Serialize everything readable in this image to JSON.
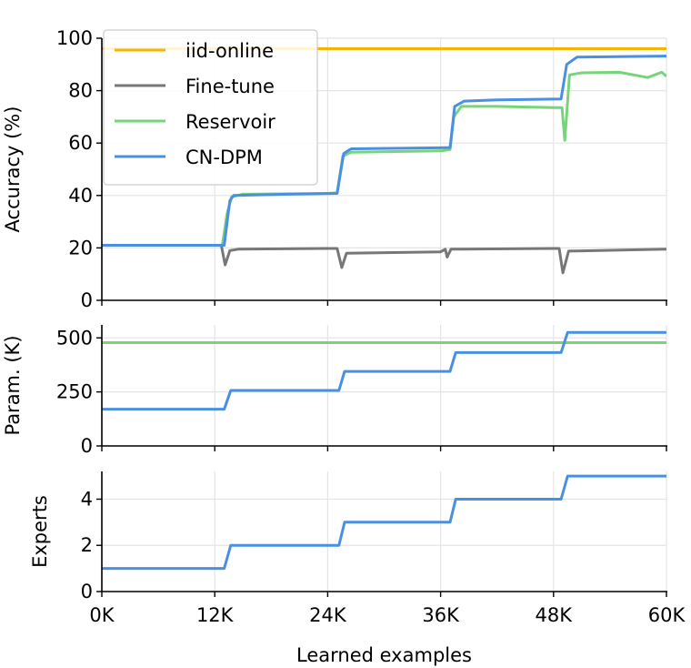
{
  "chart_data": [
    {
      "type": "line",
      "panel": "accuracy",
      "ylabel": "Accuracy (%)",
      "xlim": [
        0,
        60000
      ],
      "ylim": [
        0,
        100
      ],
      "yticks": [
        0,
        20,
        40,
        60,
        80,
        100
      ],
      "yticklabels": [
        "0",
        "20",
        "40",
        "60",
        "80",
        "100"
      ],
      "grid": true,
      "legend": {
        "position": "top-left",
        "entries": [
          "iid-online",
          "Fine-tune",
          "Reservoir",
          "CN-DPM"
        ]
      },
      "series": [
        {
          "name": "iid-online",
          "color": "#f5b400",
          "points": [
            [
              0,
              96
            ],
            [
              60000,
              96
            ]
          ]
        },
        {
          "name": "Fine-tune",
          "color": "#777777",
          "points": [
            [
              0,
              21
            ],
            [
              12700,
              21
            ],
            [
              13100,
              13.5
            ],
            [
              13600,
              19
            ],
            [
              14500,
              19.5
            ],
            [
              24000,
              19.8
            ],
            [
              25000,
              19.8
            ],
            [
              25500,
              12.5
            ],
            [
              26000,
              18
            ],
            [
              36000,
              18.5
            ],
            [
              36500,
              19.5
            ],
            [
              36700,
              16.5
            ],
            [
              37100,
              19.5
            ],
            [
              48000,
              19.8
            ],
            [
              48600,
              19.8
            ],
            [
              49000,
              10.5
            ],
            [
              49600,
              18.8
            ],
            [
              60000,
              19.5
            ]
          ]
        },
        {
          "name": "Reservoir",
          "color": "#77d47a",
          "points": [
            [
              0,
              21
            ],
            [
              12800,
              21
            ],
            [
              13300,
              33
            ],
            [
              13800,
              39.5
            ],
            [
              15000,
              40.5
            ],
            [
              24000,
              40.8
            ],
            [
              25000,
              41
            ],
            [
              25600,
              55
            ],
            [
              26500,
              56.5
            ],
            [
              36000,
              57
            ],
            [
              37000,
              57.5
            ],
            [
              37400,
              70
            ],
            [
              38200,
              74
            ],
            [
              42000,
              74
            ],
            [
              48000,
              73.5
            ],
            [
              48900,
              73.5
            ],
            [
              49200,
              61
            ],
            [
              49700,
              86
            ],
            [
              51000,
              86.8
            ],
            [
              55000,
              87
            ],
            [
              58000,
              85
            ],
            [
              59500,
              87
            ],
            [
              60000,
              85.5
            ]
          ]
        },
        {
          "name": "CN-DPM",
          "color": "#4a90e2",
          "points": [
            [
              0,
              21
            ],
            [
              13000,
              21
            ],
            [
              13600,
              38
            ],
            [
              14000,
              40
            ],
            [
              20000,
              40.5
            ],
            [
              25000,
              40.8
            ],
            [
              25700,
              56
            ],
            [
              26500,
              57.8
            ],
            [
              36000,
              58.2
            ],
            [
              37000,
              58.3
            ],
            [
              37500,
              74
            ],
            [
              38500,
              76
            ],
            [
              42000,
              76.5
            ],
            [
              48800,
              76.8
            ],
            [
              49400,
              90
            ],
            [
              50500,
              92.8
            ],
            [
              60000,
              93.2
            ]
          ]
        }
      ]
    },
    {
      "type": "line",
      "panel": "parameters",
      "ylabel": "Param. (K)",
      "xlim": [
        0,
        60000
      ],
      "ylim": [
        0,
        560
      ],
      "yticks": [
        0,
        250,
        500
      ],
      "yticklabels": [
        "0",
        "250",
        "500"
      ],
      "grid": true,
      "series": [
        {
          "name": "Reservoir",
          "color": "#77d47a",
          "points": [
            [
              0,
              478
            ],
            [
              60000,
              478
            ]
          ]
        },
        {
          "name": "CN-DPM",
          "color": "#4a90e2",
          "points": [
            [
              0,
              170
            ],
            [
              13000,
              170
            ],
            [
              13700,
              257
            ],
            [
              25200,
              257
            ],
            [
              25800,
              345
            ],
            [
              37000,
              345
            ],
            [
              37600,
              432
            ],
            [
              48800,
              432
            ],
            [
              49500,
              525
            ],
            [
              60000,
              525
            ]
          ]
        }
      ]
    },
    {
      "type": "line",
      "panel": "experts",
      "ylabel": "Experts",
      "xlabel": "Learned examples",
      "xlim": [
        0,
        60000
      ],
      "ylim": [
        0,
        5.2
      ],
      "yticks": [
        0,
        2,
        4
      ],
      "yticklabels": [
        "0",
        "2",
        "4"
      ],
      "xticks": [
        0,
        12000,
        24000,
        36000,
        48000,
        60000
      ],
      "xticklabels": [
        "0K",
        "12K",
        "24K",
        "36K",
        "48K",
        "60K"
      ],
      "grid": true,
      "series": [
        {
          "name": "CN-DPM",
          "color": "#4a90e2",
          "points": [
            [
              0,
              1
            ],
            [
              13000,
              1
            ],
            [
              13700,
              2
            ],
            [
              25200,
              2
            ],
            [
              25800,
              3
            ],
            [
              37000,
              3
            ],
            [
              37600,
              4
            ],
            [
              48800,
              4
            ],
            [
              49500,
              5
            ],
            [
              60000,
              5
            ]
          ]
        }
      ]
    }
  ]
}
